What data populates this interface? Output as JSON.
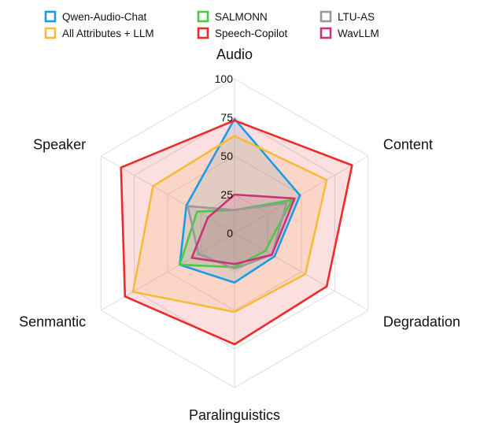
{
  "chart_data": {
    "type": "radar",
    "axes": [
      "Audio",
      "Content",
      "Degradation",
      "Paralinguistics",
      "Senmantic",
      "Speaker"
    ],
    "rlim": [
      0,
      100
    ],
    "ticks": [
      0,
      25,
      50,
      75,
      100
    ],
    "grid": true,
    "legend_position": "top",
    "series": [
      {
        "name": "Qwen-Audio-Chat",
        "color": "#1a9be8",
        "values": [
          74,
          49,
          30,
          32,
          41,
          36
        ]
      },
      {
        "name": "All Attributes + LLM",
        "color": "#f7bb3a",
        "values": [
          63,
          69,
          53,
          51,
          76,
          61
        ]
      },
      {
        "name": "SALMONN",
        "color": "#44cc44",
        "values": [
          15,
          43,
          23,
          22,
          41,
          28
        ]
      },
      {
        "name": "Speech-Copilot",
        "color": "#ee2a2a",
        "values": [
          73,
          88,
          69,
          72,
          82,
          85
        ]
      },
      {
        "name": "LTU-AS",
        "color": "#999999",
        "values": [
          15,
          39,
          28,
          23,
          27,
          35
        ]
      },
      {
        "name": "WavLLM",
        "color": "#cc3377",
        "values": [
          25,
          45,
          28,
          20,
          32,
          20
        ]
      }
    ]
  }
}
